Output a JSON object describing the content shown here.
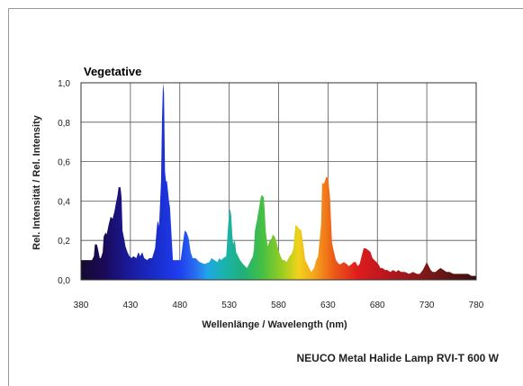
{
  "chart_data": {
    "type": "area",
    "title": "Vegetative",
    "xlabel": "Wellenlänge / Wavelength (nm)",
    "ylabel": "Rel. Intensität / Rel. Intensity",
    "caption": "NEUCO Metal Halide Lamp RVI-T 600 W",
    "xlim": [
      380,
      780
    ],
    "ylim": [
      0,
      1.0
    ],
    "x_ticks": [
      "380",
      "430",
      "480",
      "530",
      "580",
      "630",
      "680",
      "730",
      "780"
    ],
    "y_ticks": [
      "0,0",
      "0,2",
      "0,4",
      "0,6",
      "0,8",
      "1,0"
    ],
    "grid": true,
    "x": [
      380,
      384,
      388,
      391,
      393,
      394,
      396,
      397,
      399,
      400,
      402,
      403,
      405,
      406,
      408,
      410,
      412,
      414,
      415,
      417,
      418,
      420,
      421,
      422,
      424,
      425,
      427,
      429,
      431,
      433,
      436,
      438,
      440,
      442,
      444,
      447,
      449,
      452,
      455,
      457,
      458,
      459,
      461,
      462,
      463,
      464,
      465,
      466,
      467,
      468,
      469,
      470,
      473,
      476,
      481,
      483,
      485,
      487,
      489,
      491,
      493,
      496,
      500,
      505,
      510,
      512,
      515,
      518,
      520,
      522,
      524,
      527,
      529,
      530,
      531,
      532,
      533,
      534,
      535,
      536,
      537,
      539,
      541,
      544,
      546,
      548,
      550,
      552,
      554,
      555,
      556,
      558,
      560,
      562,
      563,
      565,
      566,
      567,
      569,
      571,
      573,
      574,
      576,
      578,
      580,
      582,
      584,
      586,
      588,
      591,
      593,
      595,
      596,
      597,
      599,
      601,
      603,
      605,
      607,
      609,
      611,
      613,
      616,
      618,
      620,
      623,
      624,
      626,
      628,
      630,
      632,
      634,
      636,
      638,
      641,
      643,
      646,
      649,
      651,
      654,
      656,
      658,
      660,
      662,
      664,
      666,
      668,
      671,
      673,
      675,
      677,
      679,
      681,
      683,
      685,
      688,
      690,
      693,
      696,
      699,
      701,
      704,
      708,
      712,
      716,
      720,
      723,
      726,
      728,
      730,
      732,
      734,
      736,
      739,
      741,
      744,
      747,
      750,
      753,
      757,
      761,
      765,
      769,
      772,
      775,
      778,
      780
    ],
    "values": [
      0.1,
      0.1,
      0.1,
      0.1,
      0.12,
      0.18,
      0.18,
      0.16,
      0.11,
      0.11,
      0.14,
      0.22,
      0.24,
      0.23,
      0.28,
      0.32,
      0.31,
      0.35,
      0.38,
      0.43,
      0.47,
      0.47,
      0.42,
      0.25,
      0.2,
      0.17,
      0.14,
      0.12,
      0.11,
      0.12,
      0.11,
      0.14,
      0.12,
      0.14,
      0.11,
      0.1,
      0.11,
      0.11,
      0.16,
      0.28,
      0.3,
      0.27,
      0.5,
      0.82,
      1.0,
      0.95,
      0.55,
      0.5,
      0.5,
      0.45,
      0.4,
      0.37,
      0.1,
      0.1,
      0.1,
      0.18,
      0.25,
      0.24,
      0.21,
      0.14,
      0.11,
      0.11,
      0.09,
      0.08,
      0.09,
      0.11,
      0.1,
      0.09,
      0.11,
      0.1,
      0.11,
      0.12,
      0.28,
      0.34,
      0.36,
      0.33,
      0.24,
      0.18,
      0.2,
      0.19,
      0.14,
      0.12,
      0.1,
      0.08,
      0.07,
      0.06,
      0.08,
      0.1,
      0.12,
      0.16,
      0.25,
      0.3,
      0.36,
      0.42,
      0.43,
      0.42,
      0.35,
      0.25,
      0.17,
      0.2,
      0.21,
      0.23,
      0.22,
      0.19,
      0.15,
      0.12,
      0.1,
      0.1,
      0.09,
      0.12,
      0.13,
      0.16,
      0.22,
      0.28,
      0.27,
      0.26,
      0.25,
      0.18,
      0.1,
      0.08,
      0.06,
      0.04,
      0.06,
      0.1,
      0.12,
      0.28,
      0.49,
      0.49,
      0.52,
      0.52,
      0.42,
      0.19,
      0.14,
      0.1,
      0.08,
      0.08,
      0.09,
      0.08,
      0.07,
      0.08,
      0.09,
      0.09,
      0.07,
      0.08,
      0.12,
      0.16,
      0.16,
      0.15,
      0.14,
      0.11,
      0.1,
      0.09,
      0.08,
      0.06,
      0.06,
      0.05,
      0.05,
      0.04,
      0.05,
      0.04,
      0.05,
      0.04,
      0.04,
      0.03,
      0.04,
      0.03,
      0.03,
      0.05,
      0.07,
      0.09,
      0.07,
      0.05,
      0.04,
      0.04,
      0.05,
      0.06,
      0.05,
      0.04,
      0.04,
      0.03,
      0.03,
      0.03,
      0.03,
      0.03,
      0.02,
      0.02,
      0.02
    ]
  }
}
